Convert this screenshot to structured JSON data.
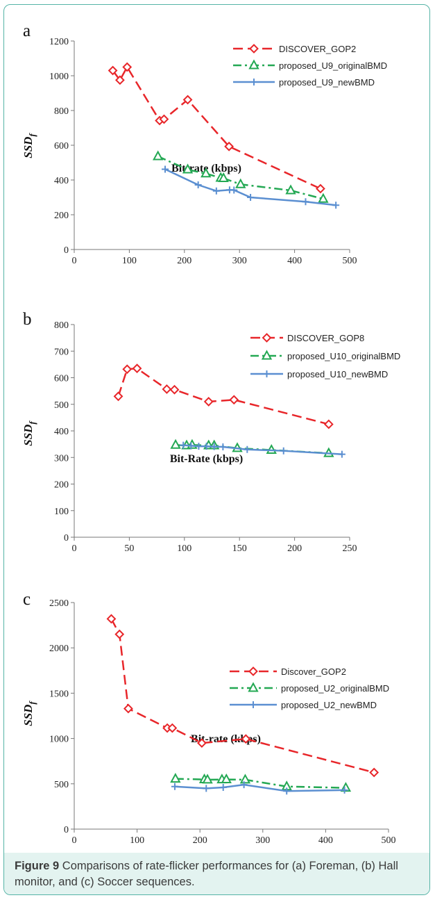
{
  "caption": {
    "label": "Figure 9",
    "text": " Comparisons of rate-flicker performances for (a) Foreman, (b) Hall monitor, and (c) Soccer sequences."
  },
  "colors": {
    "red": "#e8262a",
    "green": "#23a853",
    "blue": "#5b8fd1",
    "border": "#55b3a6",
    "caption_bg": "#e3f3f0"
  },
  "chart_data": [
    {
      "panel": "a",
      "type": "line",
      "xlabel": "Bit-rate (kbps)",
      "ylabel": "SSD",
      "ylabel_sub": "f",
      "xlim": [
        0,
        500
      ],
      "ylim": [
        0,
        1200
      ],
      "xticks": [
        0,
        100,
        200,
        300,
        400,
        500
      ],
      "yticks": [
        0,
        200,
        400,
        600,
        800,
        1000,
        1200
      ],
      "series": [
        {
          "name": "DISCOVER_GOP2",
          "color": "#e8262a",
          "marker": "diamond",
          "dash": "dashed",
          "x": [
            70,
            83,
            96,
            155,
            163,
            206,
            281,
            447
          ],
          "y": [
            1030,
            975,
            1050,
            742,
            750,
            862,
            593,
            350
          ]
        },
        {
          "name": "proposed_U9_originalBMD",
          "color": "#23a853",
          "marker": "triangle",
          "dash": "dashdot",
          "x": [
            152,
            206,
            239,
            266,
            271,
            302,
            393,
            452
          ],
          "y": [
            536,
            460,
            437,
            412,
            410,
            375,
            340,
            291
          ]
        },
        {
          "name": "proposed_U9_newBMD",
          "color": "#5b8fd1",
          "marker": "plus",
          "dash": "solid",
          "x": [
            165,
            225,
            258,
            282,
            290,
            320,
            420,
            475
          ],
          "y": [
            462,
            372,
            337,
            343,
            342,
            300,
            275,
            255
          ]
        }
      ]
    },
    {
      "panel": "b",
      "type": "line",
      "xlabel": "Bit-Rate (kbps)",
      "ylabel": "SSD",
      "ylabel_sub": "f",
      "xlim": [
        0,
        250
      ],
      "ylim": [
        0,
        800
      ],
      "xticks": [
        0,
        50,
        100,
        150,
        200,
        250
      ],
      "yticks": [
        0,
        100,
        200,
        300,
        400,
        500,
        600,
        700,
        800
      ],
      "series": [
        {
          "name": "DISCOVER_GOP8",
          "color": "#e8262a",
          "marker": "diamond",
          "dash": "dashed",
          "x": [
            40,
            48,
            57,
            84,
            91,
            122,
            145,
            231
          ],
          "y": [
            530,
            632,
            635,
            557,
            555,
            510,
            517,
            425
          ]
        },
        {
          "name": "proposed_U10_originalBMD",
          "color": "#23a853",
          "marker": "triangle",
          "dash": "dashdot",
          "x": [
            92,
            102,
            107,
            122,
            127,
            148,
            179,
            231
          ],
          "y": [
            347,
            345,
            347,
            345,
            345,
            335,
            328,
            316
          ]
        },
        {
          "name": "proposed_U10_newBMD",
          "color": "#5b8fd1",
          "marker": "plus",
          "dash": "solid",
          "x": [
            99,
            106,
            113,
            120,
            127,
            135,
            157,
            190,
            243
          ],
          "y": [
            346,
            344,
            342,
            342,
            341,
            340,
            330,
            325,
            312
          ]
        }
      ]
    },
    {
      "panel": "c",
      "type": "line",
      "xlabel": "Bit-rate (kbps)",
      "ylabel": "SSD",
      "ylabel_sub": "f",
      "xlim": [
        0,
        500
      ],
      "ylim": [
        0,
        2500
      ],
      "xticks": [
        0,
        100,
        200,
        300,
        400,
        500
      ],
      "yticks": [
        0,
        500,
        1000,
        1500,
        2000,
        2500
      ],
      "series": [
        {
          "name": "Discover_GOP2",
          "color": "#e8262a",
          "marker": "diamond",
          "dash": "dashed",
          "x": [
            59,
            72,
            86,
            148,
            156,
            203,
            273,
            477
          ],
          "y": [
            2320,
            2150,
            1330,
            1115,
            1115,
            950,
            995,
            625
          ]
        },
        {
          "name": "proposed_U2_originalBMD",
          "color": "#23a853",
          "marker": "triangle",
          "dash": "dashdot",
          "x": [
            161,
            207,
            212,
            235,
            242,
            272,
            338,
            432
          ],
          "y": [
            555,
            548,
            545,
            547,
            548,
            545,
            470,
            455
          ]
        },
        {
          "name": "proposed_U2_newBMD",
          "color": "#5b8fd1",
          "marker": "plus",
          "dash": "solid",
          "x": [
            160,
            210,
            237,
            270,
            338,
            430
          ],
          "y": [
            470,
            450,
            460,
            490,
            420,
            430
          ]
        }
      ]
    }
  ]
}
